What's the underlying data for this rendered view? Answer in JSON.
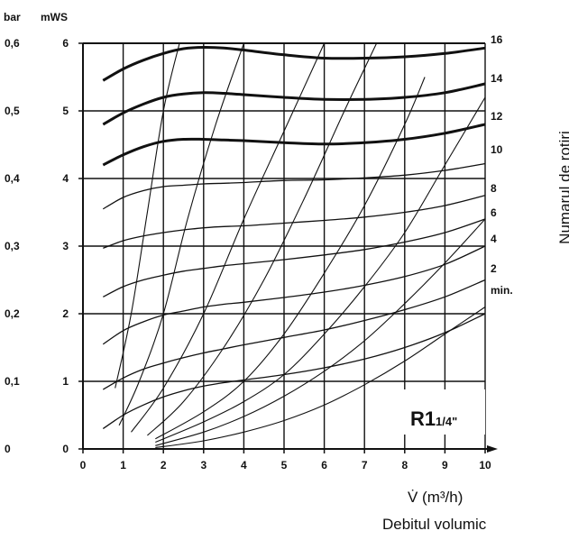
{
  "chart_data": {
    "type": "line",
    "axes": {
      "left_outer_unit": "bar",
      "left_inner_unit": "mWS",
      "bar_ticks": [
        "0",
        "0,1",
        "0,2",
        "0,3",
        "0,4",
        "0,5",
        "0,6"
      ],
      "mws_ticks": [
        "0",
        "1",
        "2",
        "3",
        "4",
        "5",
        "6"
      ],
      "x_ticks": [
        "0",
        "1",
        "2",
        "3",
        "4",
        "5",
        "6",
        "7",
        "8",
        "9",
        "10"
      ],
      "xlabel": "V̇ (m³/h)",
      "x_caption": "Debitul volumic",
      "right_caption": "Numarul de rotiri",
      "xlim": [
        0,
        10
      ],
      "ylim": [
        0,
        6
      ],
      "grid": true
    },
    "pump_marking": {
      "main": "R1",
      "fraction": "1/4\""
    },
    "speed_labels": [
      "16",
      "14",
      "12",
      "10",
      "8",
      "6",
      "4",
      "2",
      "min."
    ],
    "series": [
      {
        "name": "16",
        "x": [
          0.5,
          1,
          1.5,
          2,
          2.5,
          3,
          3.5,
          4,
          5,
          6,
          7,
          8,
          9,
          10
        ],
        "y": [
          5.45,
          5.62,
          5.75,
          5.85,
          5.92,
          5.94,
          5.93,
          5.9,
          5.83,
          5.78,
          5.78,
          5.8,
          5.85,
          5.93
        ]
      },
      {
        "name": "14",
        "x": [
          0.5,
          1,
          1.5,
          2,
          2.5,
          3,
          3.5,
          4,
          5,
          6,
          7,
          8,
          9,
          10
        ],
        "y": [
          4.8,
          4.97,
          5.1,
          5.2,
          5.25,
          5.27,
          5.26,
          5.24,
          5.2,
          5.17,
          5.17,
          5.2,
          5.27,
          5.4
        ]
      },
      {
        "name": "12",
        "x": [
          0.5,
          1,
          1.5,
          2,
          2.5,
          3,
          3.5,
          4,
          5,
          6,
          7,
          8,
          9,
          10
        ],
        "y": [
          4.2,
          4.35,
          4.47,
          4.55,
          4.58,
          4.58,
          4.57,
          4.56,
          4.53,
          4.51,
          4.53,
          4.58,
          4.67,
          4.8
        ]
      },
      {
        "name": "10",
        "x": [
          0.5,
          1,
          1.5,
          2,
          2.5,
          3,
          3.5,
          4,
          5,
          6,
          7,
          8,
          9,
          10
        ],
        "y": [
          3.55,
          3.72,
          3.82,
          3.88,
          3.9,
          3.92,
          3.93,
          3.94,
          3.97,
          3.98,
          4.01,
          4.05,
          4.12,
          4.22
        ]
      },
      {
        "name": "8",
        "x": [
          0.5,
          1,
          1.5,
          2,
          2.5,
          3,
          3.5,
          4,
          5,
          6,
          7,
          8,
          9,
          10
        ],
        "y": [
          2.97,
          3.08,
          3.15,
          3.2,
          3.24,
          3.27,
          3.29,
          3.3,
          3.34,
          3.38,
          3.43,
          3.5,
          3.6,
          3.75
        ]
      },
      {
        "name": "6",
        "x": [
          0.5,
          1,
          1.5,
          2,
          2.5,
          3,
          3.5,
          4,
          5,
          6,
          7,
          8,
          9,
          10
        ],
        "y": [
          2.25,
          2.4,
          2.5,
          2.57,
          2.63,
          2.67,
          2.71,
          2.74,
          2.8,
          2.87,
          2.95,
          3.06,
          3.2,
          3.4
        ]
      },
      {
        "name": "4",
        "x": [
          0.5,
          1,
          1.5,
          2,
          2.5,
          3,
          3.5,
          4,
          5,
          6,
          7,
          8,
          9,
          10
        ],
        "y": [
          1.55,
          1.75,
          1.88,
          1.98,
          2.04,
          2.1,
          2.14,
          2.17,
          2.24,
          2.32,
          2.42,
          2.55,
          2.73,
          3.0
        ]
      },
      {
        "name": "2",
        "x": [
          0.5,
          1,
          1.5,
          2,
          2.5,
          3,
          3.5,
          4,
          5,
          6,
          7,
          8,
          9,
          10
        ],
        "y": [
          0.88,
          1.05,
          1.18,
          1.27,
          1.35,
          1.42,
          1.48,
          1.54,
          1.65,
          1.76,
          1.9,
          2.06,
          2.25,
          2.5
        ]
      },
      {
        "name": "min.",
        "x": [
          0.5,
          1,
          1.5,
          2,
          2.5,
          3,
          3.5,
          4,
          5,
          6,
          7,
          8,
          9,
          10
        ],
        "y": [
          0.3,
          0.5,
          0.65,
          0.77,
          0.86,
          0.93,
          0.98,
          1.02,
          1.1,
          1.2,
          1.33,
          1.5,
          1.72,
          2.0
        ]
      }
    ],
    "system_curves": [
      {
        "x": [
          0.8,
          1.2,
          1.6,
          2.0,
          2.4
        ],
        "y": [
          0.9,
          2.0,
          3.5,
          5.0,
          6.0
        ]
      },
      {
        "x": [
          0.9,
          1.4,
          2.0,
          2.6,
          3.3,
          4.0
        ],
        "y": [
          0.35,
          1.0,
          2.0,
          3.4,
          4.8,
          6.0
        ]
      },
      {
        "x": [
          1.2,
          2.0,
          3.0,
          4.0,
          5.0,
          6.0
        ],
        "y": [
          0.25,
          0.9,
          2.0,
          3.4,
          4.7,
          6.0
        ]
      },
      {
        "x": [
          1.6,
          2.5,
          3.5,
          4.5,
          5.5,
          6.5,
          7.3
        ],
        "y": [
          0.2,
          0.7,
          1.5,
          2.5,
          3.7,
          5.0,
          6.0
        ]
      },
      {
        "x": [
          1.8,
          3.0,
          4.0,
          5.0,
          6.0,
          7.0,
          8.0,
          8.5
        ],
        "y": [
          0.15,
          0.55,
          1.0,
          1.7,
          2.6,
          3.6,
          4.8,
          5.5
        ]
      },
      {
        "x": [
          1.8,
          3.0,
          4.0,
          5.0,
          6.0,
          7.0,
          8.0,
          9.0,
          10.0
        ],
        "y": [
          0.1,
          0.4,
          0.7,
          1.1,
          1.7,
          2.4,
          3.2,
          4.2,
          5.2
        ]
      },
      {
        "x": [
          1.8,
          3.0,
          4.0,
          5.0,
          6.0,
          7.0,
          8.0,
          9.0,
          10.0
        ],
        "y": [
          0.05,
          0.25,
          0.48,
          0.78,
          1.15,
          1.6,
          2.15,
          2.75,
          3.4
        ]
      },
      {
        "x": [
          1.8,
          3.0,
          4.0,
          5.0,
          6.0,
          7.0,
          8.0,
          9.0,
          10.0
        ],
        "y": [
          0.02,
          0.12,
          0.25,
          0.42,
          0.65,
          0.95,
          1.3,
          1.7,
          2.1
        ]
      }
    ]
  }
}
